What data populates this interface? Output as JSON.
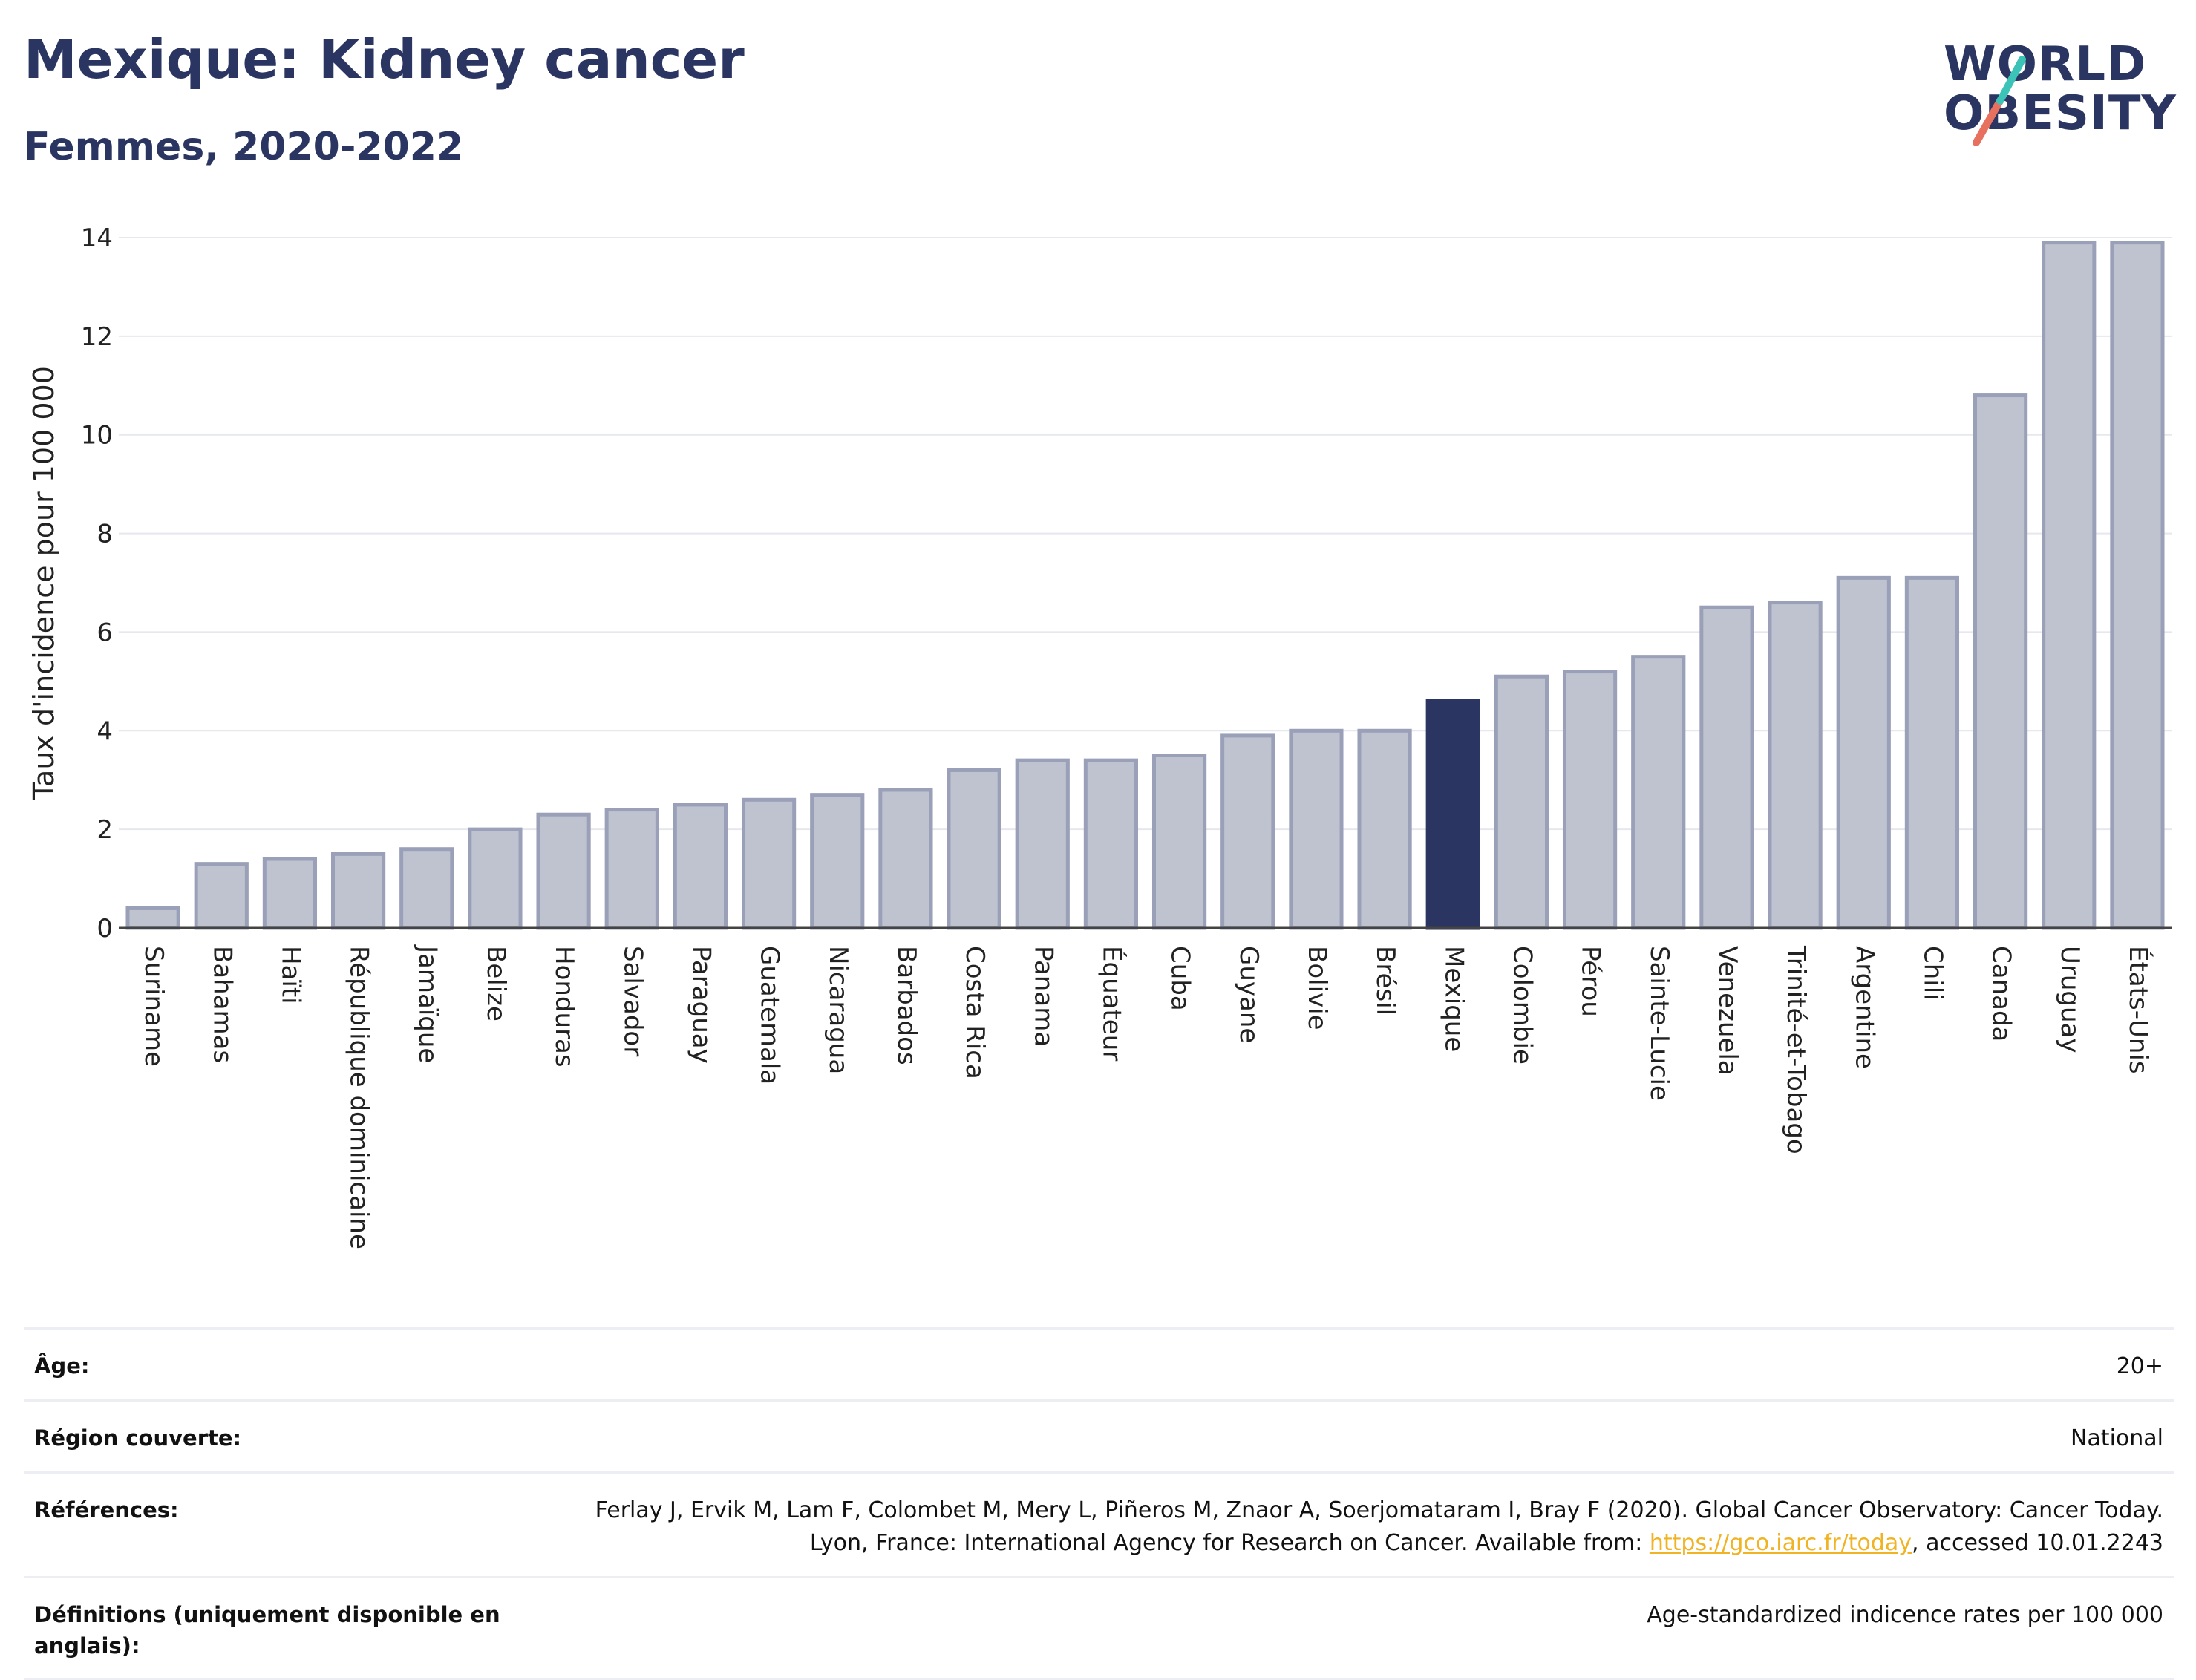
{
  "title": "Mexique: Kidney cancer",
  "subtitle": "Femmes, 2020-2022",
  "logo": {
    "line1": "WORLD",
    "line2": "OBESITY"
  },
  "colors": {
    "bar": "#bfc3d0",
    "bar_border": "#9aa0b8",
    "highlight": "#2b3561",
    "grid": "#e6e8ee"
  },
  "chart_data": {
    "type": "bar",
    "ylabel": "Taux d'incidence pour 100 000",
    "ylim": [
      0,
      14
    ],
    "yticks": [
      0,
      2,
      4,
      6,
      8,
      10,
      12,
      14
    ],
    "highlight": "Mexique",
    "grid": true,
    "categories": [
      "Suriname",
      "Bahamas",
      "Haïti",
      "République dominicaine",
      "Jamaïque",
      "Belize",
      "Honduras",
      "Salvador",
      "Paraguay",
      "Guatemala",
      "Nicaragua",
      "Barbados",
      "Costa Rica",
      "Panama",
      "Équateur",
      "Cuba",
      "Guyane",
      "Bolivie",
      "Brésil",
      "Mexique",
      "Colombie",
      "Pérou",
      "Sainte-Lucie",
      "Venezuela",
      "Trinité-et-Tobago",
      "Argentine",
      "Chili",
      "Canada",
      "Uruguay",
      "États-Unis"
    ],
    "values": [
      0.4,
      1.3,
      1.4,
      1.5,
      1.6,
      2.0,
      2.3,
      2.4,
      2.5,
      2.6,
      2.7,
      2.8,
      3.2,
      3.4,
      3.4,
      3.5,
      3.9,
      4.0,
      4.0,
      4.6,
      5.1,
      5.2,
      5.5,
      6.5,
      6.6,
      7.1,
      7.1,
      10.8,
      13.9,
      13.9
    ]
  },
  "info": {
    "age_label": "Âge:",
    "age_value": "20+",
    "region_label": "Région couverte:",
    "region_value": "National",
    "refs_label": "Références:",
    "refs_text1": "Ferlay J, Ervik M, Lam F, Colombet M, Mery L, Piñeros M, Znaor A, Soerjomataram I, Bray F (2020). Global Cancer Observatory: Cancer Today. Lyon, France: International Agency for Research on Cancer. Available from: ",
    "refs_link": "https://gco.iarc.fr/today",
    "refs_text2": ", accessed 10.01.2243",
    "defs_label": "Définitions (uniquement disponible en anglais):",
    "defs_value": "Age-standardized indicence rates per 100 000"
  }
}
